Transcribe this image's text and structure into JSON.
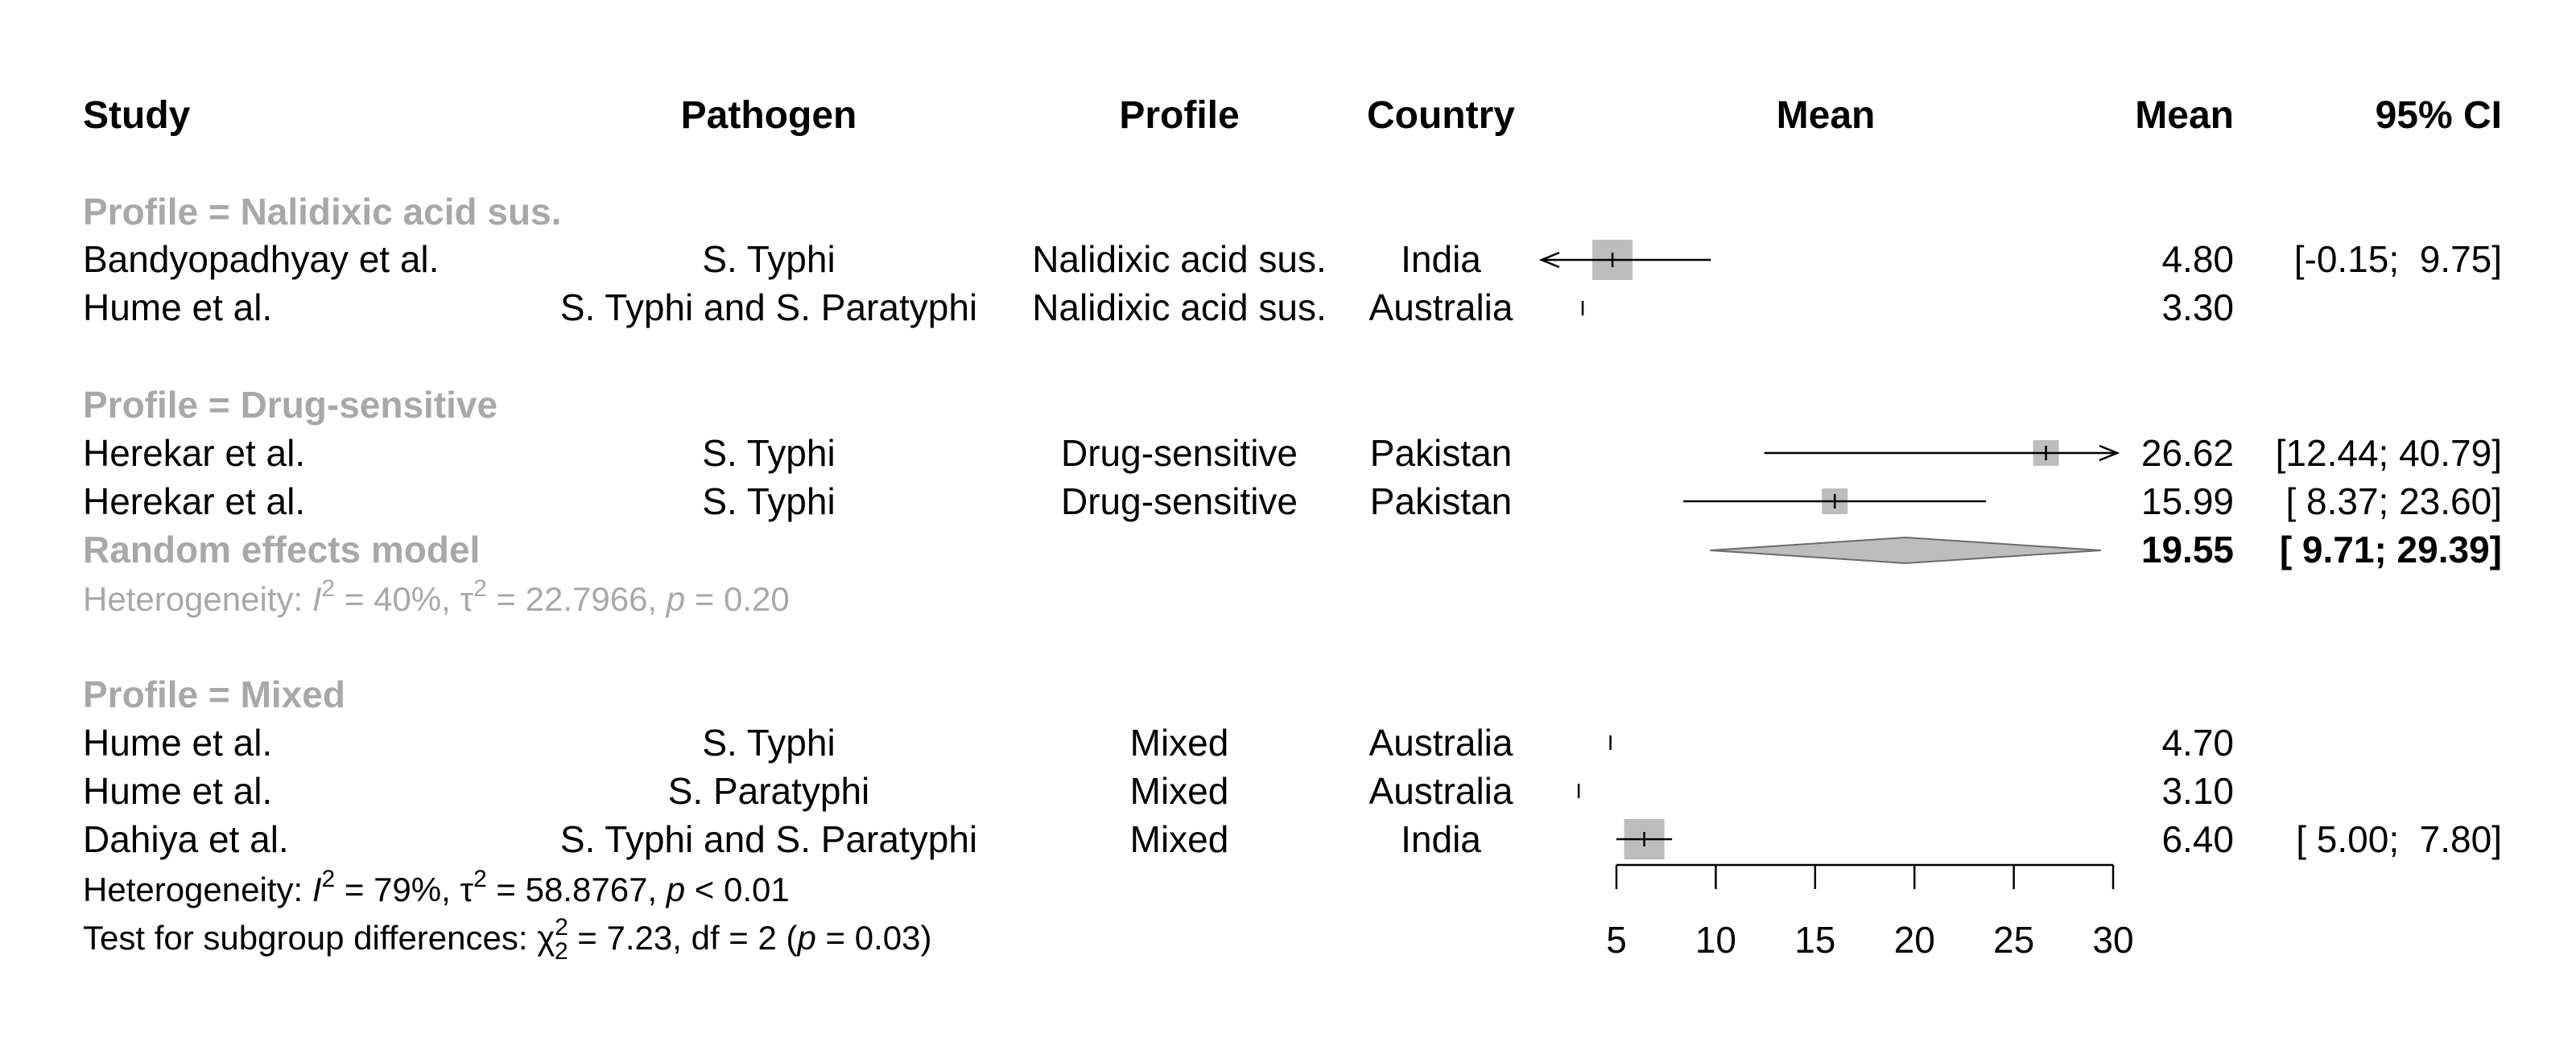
{
  "headers": {
    "study": "Study",
    "pathogen": "Pathogen",
    "profile": "Profile",
    "country": "Country",
    "plot": "Mean",
    "mean": "Mean",
    "ci": "95% CI"
  },
  "colors": {
    "group_label": "#a8a8a8",
    "box": "#bdbdbd",
    "diamond": "#bdbdbd",
    "text": "#000000"
  },
  "subgroups": [
    {
      "label": "Profile = Nalidixic acid sus.",
      "studies": [
        {
          "study": "Bandyopadhyay et al.",
          "pathogen": "S. Typhi",
          "profile": "Nalidixic acid sus.",
          "country": "India",
          "mean_text": "4.80",
          "ci_text": "[-0.15;  9.75]"
        },
        {
          "study": "Hume et al.",
          "pathogen": "S. Typhi and S. Paratyphi",
          "profile": "Nalidixic acid sus.",
          "country": "Australia",
          "mean_text": "3.30",
          "ci_text": ""
        }
      ]
    },
    {
      "label": "Profile = Drug-sensitive",
      "studies": [
        {
          "study": "Herekar et al.",
          "pathogen": "S. Typhi",
          "profile": "Drug-sensitive",
          "country": "Pakistan",
          "mean_text": "26.62",
          "ci_text": "[12.44; 40.79]"
        },
        {
          "study": "Herekar et al.",
          "pathogen": "S. Typhi",
          "profile": "Drug-sensitive",
          "country": "Pakistan",
          "mean_text": "15.99",
          "ci_text": "[ 8.37; 23.60]"
        }
      ],
      "pooled": {
        "label": "Random effects model",
        "mean_text": "19.55",
        "ci_text": "[ 9.71; 29.39]"
      },
      "heterogeneity": {
        "prefix": "Heterogeneity: ",
        "i_letter": "I",
        "sup": "2",
        "i2_rest": " = 40%, ",
        "tau": "τ",
        "tau_rest": " = 22.7966, ",
        "p_letter": "p",
        "p_rest": " = 0.20"
      }
    },
    {
      "label": "Profile = Mixed",
      "studies": [
        {
          "study": "Hume et al.",
          "pathogen": "S. Typhi",
          "profile": "Mixed",
          "country": "Australia",
          "mean_text": "4.70",
          "ci_text": ""
        },
        {
          "study": "Hume et al.",
          "pathogen": "S. Paratyphi",
          "profile": "Mixed",
          "country": "Australia",
          "mean_text": "3.10",
          "ci_text": ""
        },
        {
          "study": "Dahiya et al.",
          "pathogen": "S. Typhi and S. Paratyphi",
          "profile": "Mixed",
          "country": "India",
          "mean_text": "6.40",
          "ci_text": "[ 5.00;  7.80]"
        }
      ]
    }
  ],
  "footer": {
    "heterogeneity": {
      "prefix": "Heterogeneity: ",
      "i_letter": "I",
      "sup": "2",
      "i2_rest": " = 79%, ",
      "tau": "τ",
      "tau_rest": " = 58.8767, ",
      "p_letter": "p",
      "p_rest": " < 0.01"
    },
    "subgroup_test": {
      "prefix": "Test for subgroup differences: ",
      "chi": "χ",
      "sub": "2",
      "sup": "2",
      "rest1": " = 7.23, df = 2 (",
      "p_letter": "p",
      "rest2": " = 0.03)"
    }
  },
  "chart_data": {
    "type": "forest",
    "xlim": [
      5,
      30
    ],
    "x_ticks": [
      5,
      10,
      15,
      20,
      25,
      30
    ],
    "studies": [
      {
        "label": "Bandyopadhyay et al.",
        "mean": 4.8,
        "lower": -0.15,
        "upper": 9.75,
        "weight": "large"
      },
      {
        "label": "Hume et al.",
        "mean": 3.3,
        "lower": 3.3,
        "upper": 3.3,
        "weight": "tiny"
      },
      {
        "label": "Herekar et al.",
        "mean": 26.62,
        "lower": 12.44,
        "upper": 40.79,
        "weight": "small"
      },
      {
        "label": "Herekar et al.",
        "mean": 15.99,
        "lower": 8.37,
        "upper": 23.6,
        "weight": "small"
      },
      {
        "label": "Hume et al.",
        "mean": 4.7,
        "lower": 4.7,
        "upper": 4.7,
        "weight": "tiny"
      },
      {
        "label": "Hume et al.",
        "mean": 3.1,
        "lower": 3.1,
        "upper": 3.1,
        "weight": "tiny"
      },
      {
        "label": "Dahiya et al.",
        "mean": 6.4,
        "lower": 5.0,
        "upper": 7.8,
        "weight": "large"
      }
    ],
    "pooled": [
      {
        "label": "Random effects model",
        "mean": 19.55,
        "lower": 9.71,
        "upper": 29.39
      }
    ]
  }
}
